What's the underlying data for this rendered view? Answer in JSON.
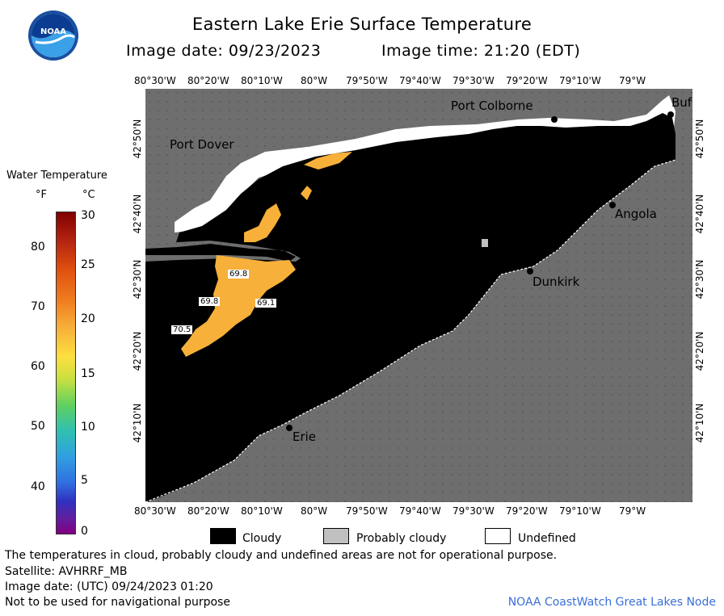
{
  "header": {
    "title": "Eastern Lake Erie Surface Temperature",
    "image_date": "Image date: 09/23/2023",
    "image_time": "Image time: 21:20 (EDT)",
    "logo_text": "NOAA"
  },
  "axes": {
    "longitude_ticks": [
      "80°30'W",
      "80°20'W",
      "80°10'W",
      "80°W",
      "79°50'W",
      "79°40'W",
      "79°30'W",
      "79°20'W",
      "79°10'W",
      "79°W"
    ],
    "latitude_ticks": [
      "42°50'N",
      "42°40'N",
      "42°30'N",
      "42°20'N",
      "42°10'N"
    ]
  },
  "places": {
    "port_colborne": "Port Colborne",
    "buffalo": "Buf",
    "port_dover": "Port Dover",
    "angola": "Angola",
    "dunkirk": "Dunkirk",
    "erie": "Erie"
  },
  "temperature_labels": [
    "69.8",
    "69.8",
    "69.1",
    "70.5"
  ],
  "colorbar": {
    "title": "Water Temperature",
    "unit_f": "°F",
    "unit_c": "°C",
    "fahrenheit_labels": [
      "80",
      "70",
      "60",
      "50",
      "40"
    ],
    "celsius_labels": [
      "30",
      "25",
      "20",
      "15",
      "10",
      "5",
      "0"
    ],
    "colors": [
      "#800000",
      "#c03010",
      "#f06a00",
      "#f7a020",
      "#fde040",
      "#c8e040",
      "#60d060",
      "#30c0b0",
      "#30a0e0",
      "#3070e0",
      "#3030c0",
      "#6020a0",
      "#800080"
    ]
  },
  "legend": {
    "cloudy": "Cloudy",
    "probably_cloudy": "Probably cloudy",
    "undefined": "Undefined"
  },
  "footer": {
    "disclaimer": "The temperatures in cloud, probably cloudy and undefined areas are not for operational purpose.",
    "satellite": "Satellite: AVHRRF_MB",
    "utc_date": "Image date: (UTC) 09/24/2023  01:20",
    "navigation": "Not to be used for navigational purpose",
    "credit": "NOAA CoastWatch Great Lakes Node"
  },
  "colors": {
    "land": "#6e6e6e",
    "cloud": "#000000",
    "probably_cloudy": "#c0c0c0",
    "undefined": "#ffffff",
    "warm_water": "#f7b03a",
    "credit_blue": "#3a6fd8"
  }
}
